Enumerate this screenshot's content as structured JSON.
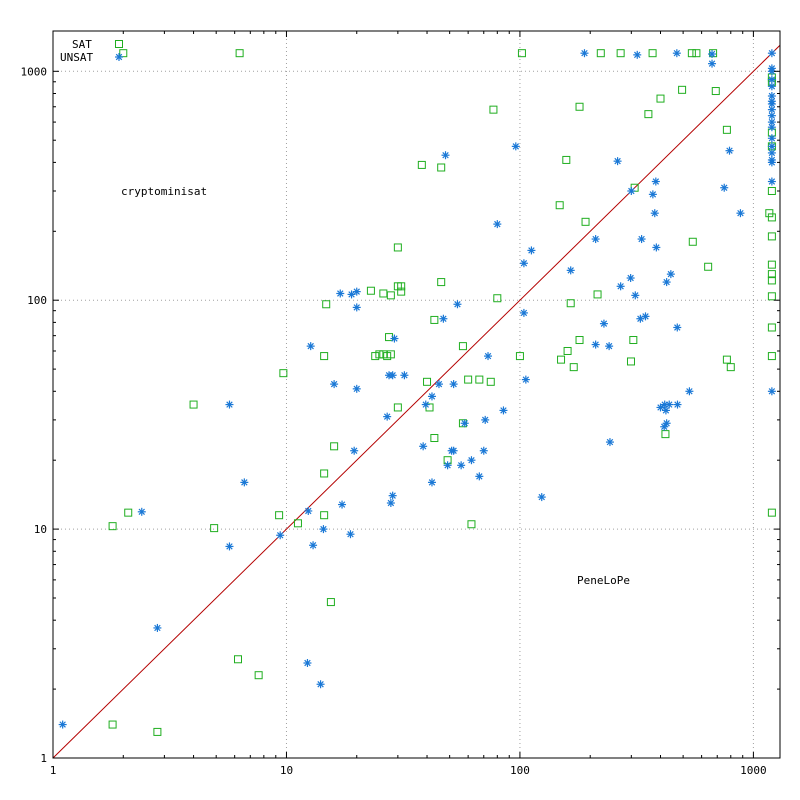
{
  "colors": {
    "sat": "#1fae1f",
    "unsat": "#1a78d6",
    "diagonal": "#b40000",
    "grid": "#a0a0a0"
  },
  "chart_data": {
    "type": "scatter",
    "title": "",
    "xlabel": "",
    "ylabel": "",
    "xscale": "log",
    "yscale": "log",
    "xlim": [
      1,
      1300
    ],
    "ylim": [
      1,
      1500
    ],
    "grid": true,
    "legend_position": "top-left",
    "x_ticks": [
      "1",
      "10",
      "100",
      "1000"
    ],
    "y_ticks": [
      "1",
      "10",
      "100",
      "1000"
    ],
    "annotations": [
      "cryptominisat",
      "PeneLoPe"
    ],
    "diagonal": "y = x",
    "series": [
      {
        "name": "SAT",
        "marker": "square",
        "points": [
          [
            2,
            1200
          ],
          [
            6.3,
            1200
          ],
          [
            102,
            1200
          ],
          [
            222,
            1200
          ],
          [
            270,
            1200
          ],
          [
            370,
            1200
          ],
          [
            545,
            1200
          ],
          [
            570,
            1200
          ],
          [
            672,
            1200
          ],
          [
            77,
            680
          ],
          [
            180,
            700
          ],
          [
            400,
            760
          ],
          [
            495,
            830
          ],
          [
            690,
            820
          ],
          [
            355,
            650
          ],
          [
            770,
            555
          ],
          [
            1200,
            900
          ],
          [
            1200,
            940
          ],
          [
            1200,
            540
          ],
          [
            1200,
            470
          ],
          [
            38,
            390
          ],
          [
            46,
            380
          ],
          [
            158,
            410
          ],
          [
            310,
            310
          ],
          [
            1200,
            300
          ],
          [
            148,
            260
          ],
          [
            1170,
            240
          ],
          [
            191,
            220
          ],
          [
            1200,
            230
          ],
          [
            30,
            170
          ],
          [
            1200,
            190
          ],
          [
            550,
            180
          ],
          [
            640,
            140
          ],
          [
            1200,
            143
          ],
          [
            1200,
            130
          ],
          [
            1200,
            122
          ],
          [
            46,
            120
          ],
          [
            30,
            115
          ],
          [
            31,
            115
          ],
          [
            23,
            110
          ],
          [
            31,
            109
          ],
          [
            26,
            107
          ],
          [
            28,
            105
          ],
          [
            80,
            102
          ],
          [
            215,
            106
          ],
          [
            14.8,
            96
          ],
          [
            1200,
            104
          ],
          [
            165,
            97
          ],
          [
            43,
            82
          ],
          [
            27.5,
            69
          ],
          [
            26,
            58
          ],
          [
            24,
            57
          ],
          [
            25,
            58
          ],
          [
            28,
            58
          ],
          [
            27,
            57
          ],
          [
            14.5,
            57
          ],
          [
            57,
            63
          ],
          [
            160,
            60
          ],
          [
            180,
            67
          ],
          [
            306,
            67
          ],
          [
            1200,
            76
          ],
          [
            150,
            55
          ],
          [
            170,
            51
          ],
          [
            299,
            54
          ],
          [
            770,
            55
          ],
          [
            800,
            51
          ],
          [
            1200,
            57
          ],
          [
            100,
            57
          ],
          [
            60,
            45
          ],
          [
            67,
            45
          ],
          [
            75,
            44
          ],
          [
            40,
            44
          ],
          [
            9.7,
            48
          ],
          [
            30,
            34
          ],
          [
            41,
            34
          ],
          [
            57,
            29
          ],
          [
            16,
            23
          ],
          [
            43,
            25
          ],
          [
            49,
            20
          ],
          [
            14.5,
            17.5
          ],
          [
            420,
            26
          ],
          [
            2.1,
            11.8
          ],
          [
            1.8,
            10.3
          ],
          [
            4.9,
            10.1
          ],
          [
            9.3,
            11.5
          ],
          [
            11.2,
            10.6
          ],
          [
            14.5,
            11.5
          ],
          [
            62,
            10.5
          ],
          [
            1200,
            11.8
          ],
          [
            4,
            35
          ],
          [
            15.5,
            4.8
          ],
          [
            6.2,
            2.7
          ],
          [
            7.6,
            2.3
          ],
          [
            1.8,
            1.4
          ],
          [
            2.8,
            1.3
          ]
        ]
      },
      {
        "name": "UNSAT",
        "marker": "asterisk",
        "points": [
          [
            1200,
            1200
          ],
          [
            189,
            1200
          ],
          [
            318,
            1180
          ],
          [
            470,
            1200
          ],
          [
            665,
            1190
          ],
          [
            665,
            1080
          ],
          [
            1200,
            1030
          ],
          [
            1200,
            1000
          ],
          [
            1200,
            920
          ],
          [
            1200,
            860
          ],
          [
            1200,
            780
          ],
          [
            1200,
            740
          ],
          [
            1200,
            720
          ],
          [
            1200,
            680
          ],
          [
            1200,
            640
          ],
          [
            1200,
            600
          ],
          [
            1200,
            570
          ],
          [
            1200,
            510
          ],
          [
            1200,
            470
          ],
          [
            1200,
            440
          ],
          [
            1200,
            410
          ],
          [
            1200,
            330
          ],
          [
            48,
            430
          ],
          [
            96,
            470
          ],
          [
            262,
            405
          ],
          [
            790,
            450
          ],
          [
            1200,
            400
          ],
          [
            750,
            310
          ],
          [
            382,
            330
          ],
          [
            300,
            300
          ],
          [
            371,
            290
          ],
          [
            880,
            240
          ],
          [
            378,
            240
          ],
          [
            80,
            215
          ],
          [
            112,
            165
          ],
          [
            104,
            145
          ],
          [
            211,
            185
          ],
          [
            332,
            185
          ],
          [
            384,
            170
          ],
          [
            443,
            130
          ],
          [
            425,
            120
          ],
          [
            298,
            125
          ],
          [
            165,
            135
          ],
          [
            312,
            105
          ],
          [
            270,
            115
          ],
          [
            17,
            107
          ],
          [
            19,
            106
          ],
          [
            20,
            109
          ],
          [
            20,
            93
          ],
          [
            54,
            96
          ],
          [
            104,
            88
          ],
          [
            47,
            83
          ],
          [
            328,
            83
          ],
          [
            345,
            85
          ],
          [
            12.7,
            63
          ],
          [
            29,
            68
          ],
          [
            229,
            79
          ],
          [
            211,
            64
          ],
          [
            241,
            63
          ],
          [
            472,
            76
          ],
          [
            16,
            43
          ],
          [
            20,
            41
          ],
          [
            27.5,
            47
          ],
          [
            28.5,
            47
          ],
          [
            32,
            47
          ],
          [
            45,
            43
          ],
          [
            52,
            43
          ],
          [
            106,
            45
          ],
          [
            73,
            57
          ],
          [
            532,
            40
          ],
          [
            1200,
            40
          ],
          [
            39.5,
            35
          ],
          [
            42,
            38
          ],
          [
            417,
            35
          ],
          [
            436,
            35
          ],
          [
            400,
            34
          ],
          [
            422,
            33
          ],
          [
            473,
            35
          ],
          [
            27,
            31
          ],
          [
            415,
            28
          ],
          [
            425,
            29
          ],
          [
            19.5,
            22
          ],
          [
            38.5,
            23
          ],
          [
            51,
            22
          ],
          [
            52,
            22
          ],
          [
            70,
            22
          ],
          [
            56,
            19
          ],
          [
            62,
            20
          ],
          [
            49,
            19
          ],
          [
            42,
            16
          ],
          [
            67,
            17
          ],
          [
            85,
            33
          ],
          [
            58,
            29
          ],
          [
            71,
            30
          ],
          [
            243,
            24
          ],
          [
            5.7,
            35
          ],
          [
            6.6,
            16
          ],
          [
            17.3,
            12.8
          ],
          [
            12.4,
            12
          ],
          [
            14.4,
            10
          ],
          [
            13,
            8.5
          ],
          [
            18.8,
            9.5
          ],
          [
            28,
            13
          ],
          [
            28.5,
            14
          ],
          [
            9.4,
            9.4
          ],
          [
            2.4,
            11.9
          ],
          [
            5.7,
            8.4
          ],
          [
            124,
            13.8
          ],
          [
            2.8,
            3.7
          ],
          [
            12.3,
            2.6
          ],
          [
            14,
            2.1
          ],
          [
            1.1,
            1.4
          ]
        ]
      }
    ]
  }
}
